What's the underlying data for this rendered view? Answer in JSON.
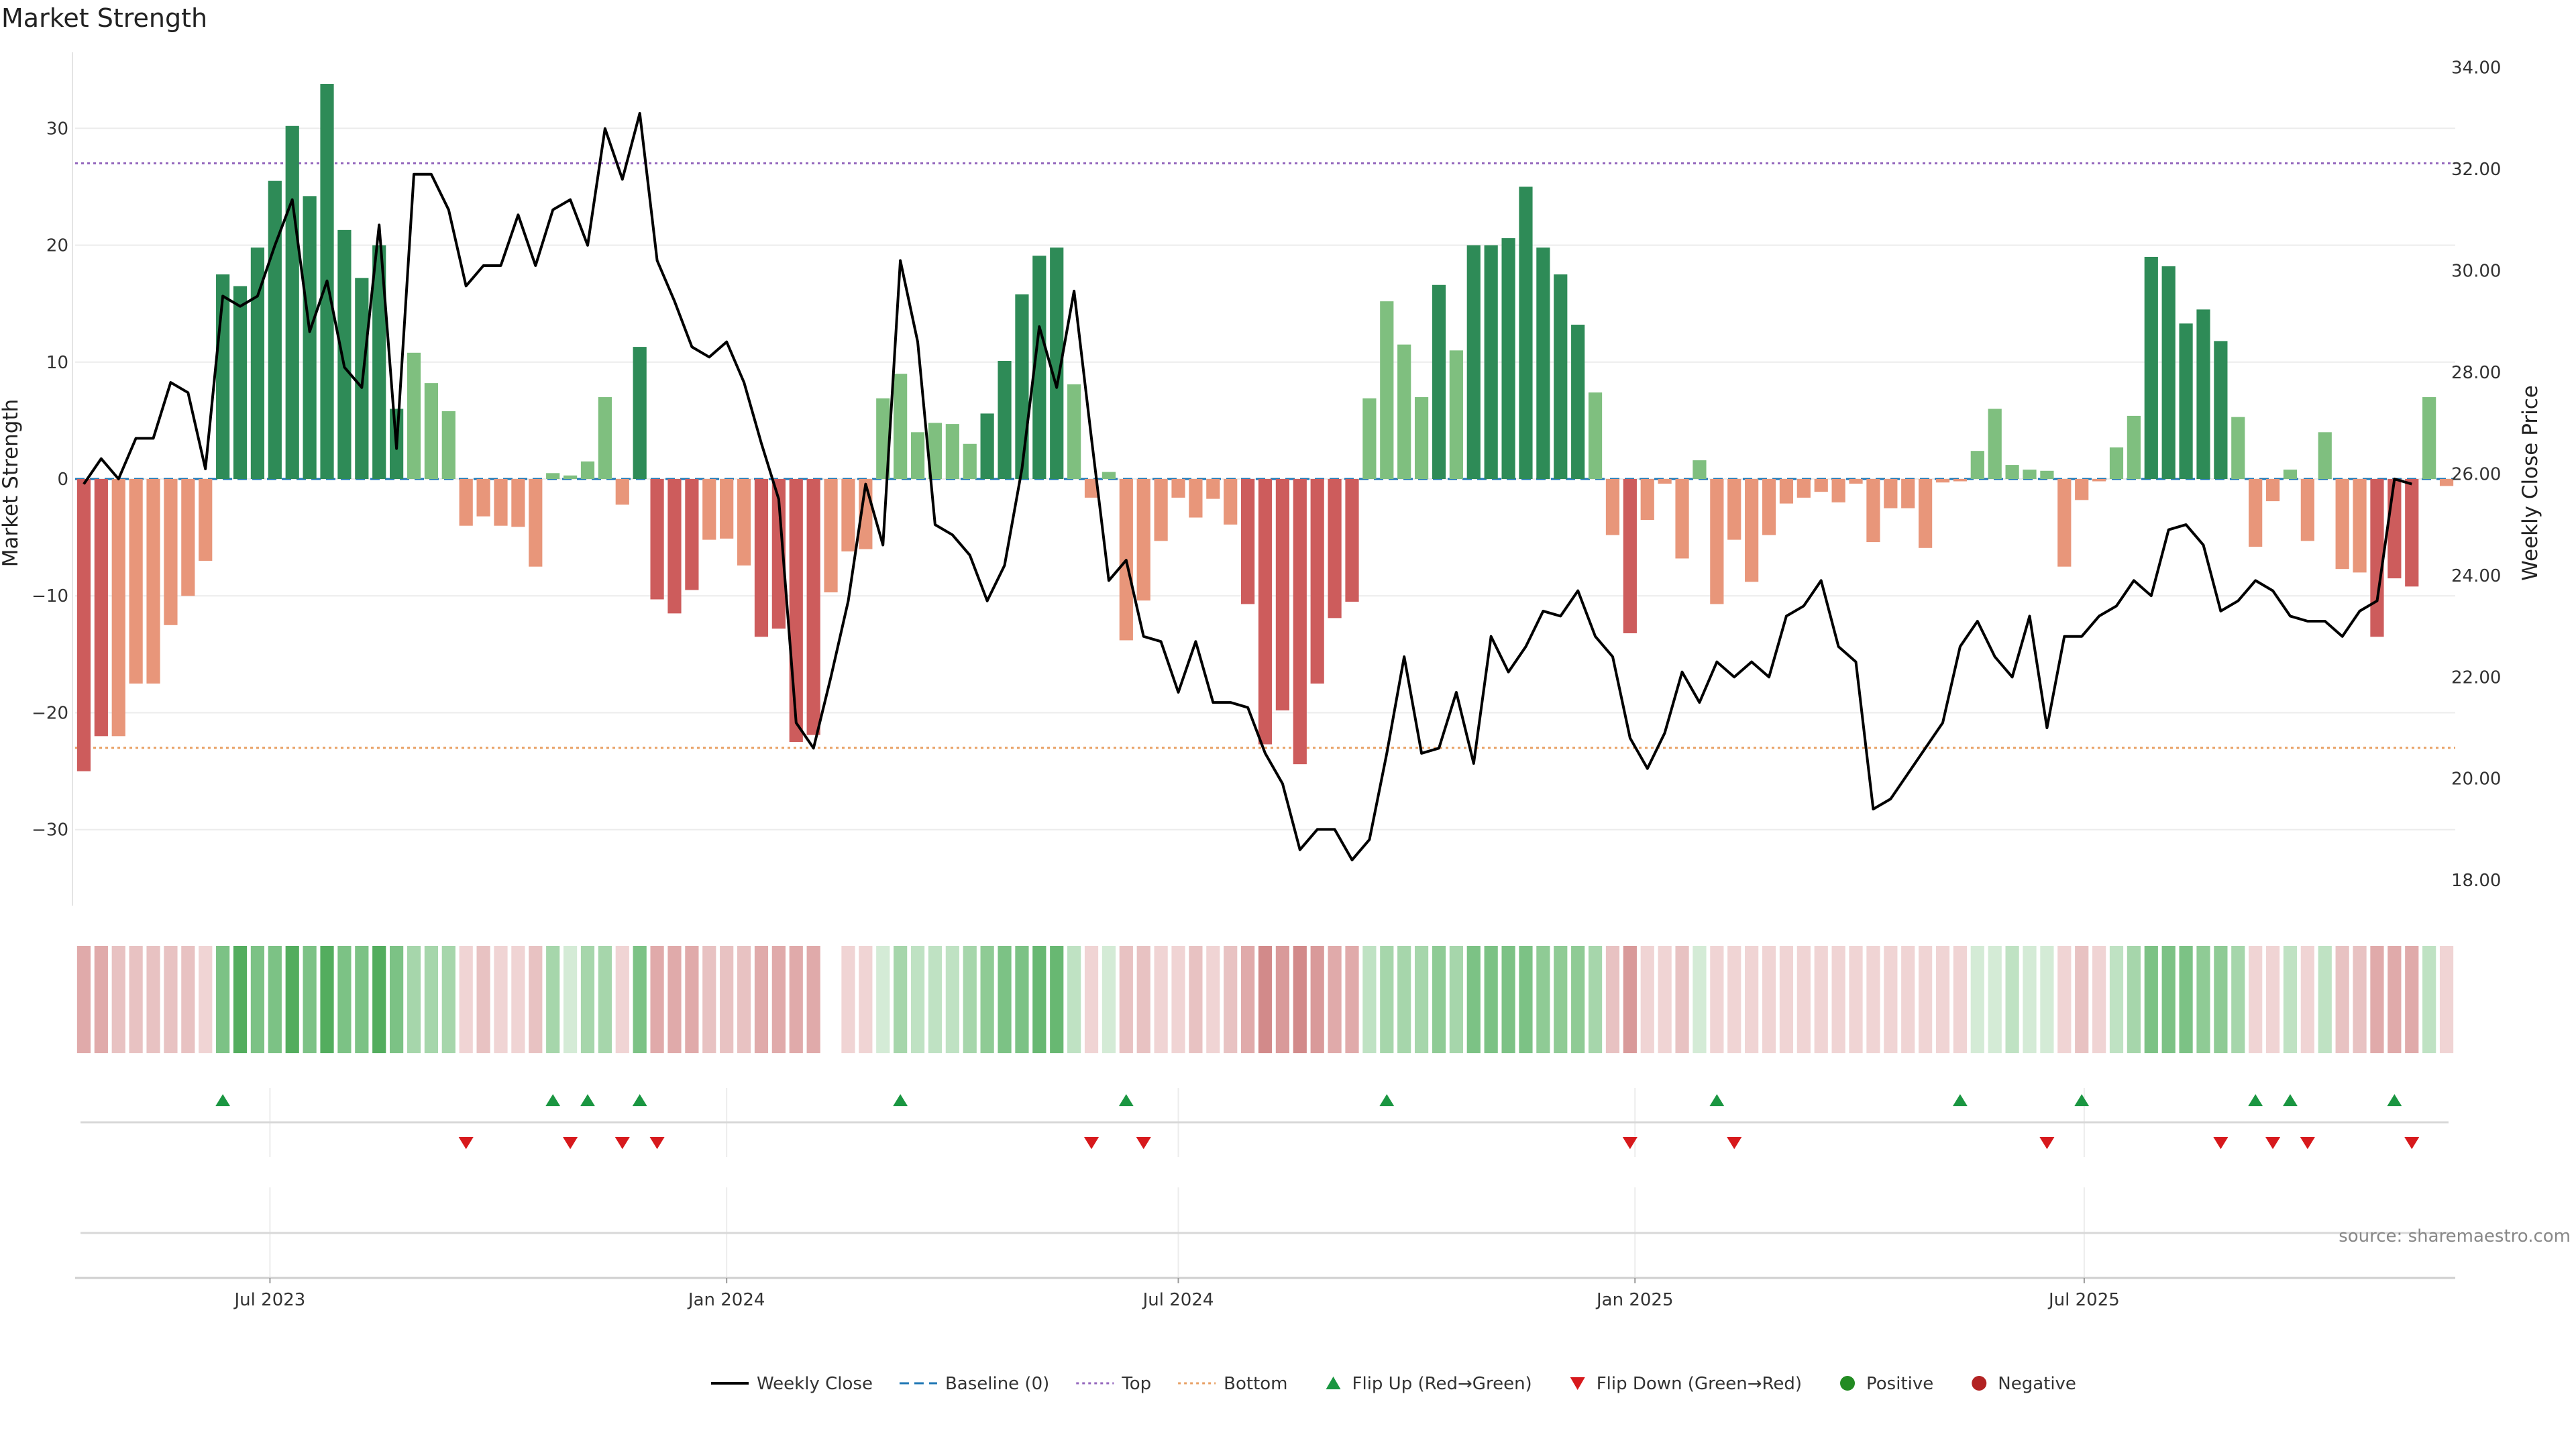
{
  "chart_data": {
    "type": "bar",
    "title": "Market Strength",
    "ylabel": "Market Strength",
    "y2label": "Weekly Close Price",
    "source": "source: sharemaestro.com",
    "ylim": [
      -36.5,
      36.5
    ],
    "y2lim": [
      17.5,
      34.3
    ],
    "yticks": [
      "−30",
      "−20",
      "−10",
      "0",
      "10",
      "20",
      "30"
    ],
    "yticks_values": [
      -30,
      -20,
      -10,
      0,
      10,
      20,
      30
    ],
    "y2ticks": [
      "18.00",
      "20.00",
      "22.00",
      "24.00",
      "26.00",
      "28.00",
      "30.00",
      "32.00",
      "34.00"
    ],
    "y2ticks_values": [
      18,
      20,
      22,
      24,
      26,
      28,
      30,
      32,
      34
    ],
    "xticks": [
      "Jul 2023",
      "Jan 2024",
      "Jul 2024",
      "Jan 2025",
      "Jul 2025"
    ],
    "xticks_values": [
      "2023-07-01",
      "2024-01-01",
      "2024-07-01",
      "2025-01-01",
      "2025-07-01"
    ],
    "start_date": "2023-04-17",
    "week_step_days": 7,
    "grid": true,
    "legend_position": "bottom-center",
    "reference_lines": [
      {
        "name": "Baseline (0)",
        "value": 0,
        "color": "#1f77b4",
        "style": "dashed"
      },
      {
        "name": "Top",
        "value": 27,
        "color": "#9467bd",
        "style": "dotted"
      },
      {
        "name": "Bottom",
        "value": -23,
        "color": "#e8a064",
        "style": "dotted"
      }
    ],
    "colors": {
      "pos_strong": "#2e8b57",
      "pos_weak": "#7fbf7f",
      "neg_strong": "#cd5c5c",
      "neg_weak": "#e8967a",
      "line": "#000000",
      "flip_up": "#1a9641",
      "flip_down": "#d7191c",
      "positive": "#228b22",
      "negative": "#b22222"
    },
    "legend": [
      {
        "label": "Weekly Close",
        "kind": "line"
      },
      {
        "label": "Baseline (0)",
        "kind": "baseline"
      },
      {
        "label": "Top",
        "kind": "top"
      },
      {
        "label": "Bottom",
        "kind": "bottom"
      },
      {
        "label": "Flip Up (Red→Green)",
        "kind": "flipup"
      },
      {
        "label": "Flip Down (Green→Red)",
        "kind": "flipdown"
      },
      {
        "label": "Positive",
        "kind": "positive"
      },
      {
        "label": "Negative",
        "kind": "negative"
      }
    ],
    "strength": [
      -25,
      -22,
      -22,
      -17.5,
      -17.5,
      -12.5,
      -10,
      -7,
      17.5,
      16.5,
      19.8,
      25.5,
      30.2,
      24.2,
      33.8,
      21.3,
      17.2,
      20,
      6,
      10.8,
      8.2,
      5.8,
      -4,
      -3.2,
      -4,
      -4.1,
      -7.5,
      0.5,
      0.3,
      1.5,
      7,
      -2.2,
      11.3,
      -10.3,
      -11.5,
      -9.5,
      -5.2,
      -5.1,
      -7.4,
      -13.5,
      -12.8,
      -22.5,
      -21.9,
      -9.7,
      -6.2,
      -6,
      6.9,
      9,
      4,
      4.8,
      4.7,
      3,
      5.6,
      10.1,
      15.8,
      19.1,
      19.8,
      8.1,
      -1.6,
      0.6,
      -13.8,
      -10.4,
      -5.3,
      -1.6,
      -3.3,
      -1.7,
      -3.9,
      -10.7,
      -22.7,
      -19.8,
      -24.4,
      -17.5,
      -11.9,
      -10.5,
      6.9,
      15.2,
      11.5,
      7,
      16.6,
      11,
      20,
      20,
      20.6,
      25,
      19.8,
      17.5,
      13.2,
      7.4,
      -4.8,
      -13.2,
      -3.5,
      -0.4,
      -6.8,
      1.6,
      -10.7,
      -5.2,
      -8.8,
      -4.8,
      -2.1,
      -1.6,
      -1.1,
      -2,
      -0.4,
      -5.4,
      -2.5,
      -2.5,
      -5.9,
      -0.3,
      -0.2,
      2.4,
      6,
      1.2,
      0.8,
      0.7,
      -7.5,
      -1.8,
      -0.2,
      2.7,
      5.4,
      19,
      18.2,
      13.3,
      14.5,
      11.8,
      5.3,
      -5.8,
      -1.9,
      0.8,
      -5.3,
      4,
      -7.7,
      -8,
      -13.5,
      -8.5,
      -9.2,
      7,
      -0.6
    ],
    "strength_shading": [
      4,
      4,
      3,
      3,
      3,
      3,
      3,
      2,
      6,
      8,
      6,
      6,
      8,
      6,
      8,
      6,
      6,
      8,
      6,
      4,
      4,
      4,
      2,
      3,
      2,
      2,
      3,
      4,
      2,
      4,
      4,
      2,
      6,
      4,
      4,
      4,
      3,
      3,
      3,
      4,
      4,
      4,
      4,
      3,
      2,
      2,
      2,
      4,
      3,
      3,
      3,
      4,
      5,
      6,
      6,
      7,
      7,
      3,
      2,
      2,
      3,
      3,
      2,
      2,
      3,
      2,
      3,
      4,
      6,
      5,
      6,
      5,
      4,
      4,
      3,
      4,
      4,
      4,
      5,
      4,
      6,
      6,
      6,
      6,
      5,
      5,
      5,
      4,
      3,
      5,
      2,
      2,
      3,
      2,
      2,
      2,
      2,
      2,
      2,
      2,
      2,
      2,
      2,
      2,
      2,
      2,
      2,
      2,
      2,
      2,
      2,
      3,
      2,
      2,
      2,
      3,
      2,
      3,
      4,
      6,
      6,
      6,
      5,
      5,
      4,
      2,
      2,
      3,
      2,
      3,
      3,
      3,
      4,
      4,
      4,
      3,
      2
    ],
    "weekly_close": [
      25.8,
      26.3,
      25.9,
      26.7,
      26.7,
      27.8,
      27.6,
      26.1,
      29.5,
      29.3,
      29.5,
      30.5,
      31.4,
      28.8,
      29.8,
      28.1,
      27.7,
      30.9,
      26.5,
      31.9,
      31.9,
      31.2,
      29.7,
      30.1,
      30.1,
      31.1,
      30.1,
      31.2,
      31.4,
      30.5,
      32.8,
      31.8,
      33.1,
      30.2,
      29.4,
      28.5,
      28.3,
      28.6,
      27.8,
      26.6,
      25.5,
      21.1,
      20.6,
      22,
      23.5,
      25.8,
      24.6,
      30.2,
      28.6,
      25,
      24.8,
      24.4,
      23.5,
      24.2,
      26.1,
      28.9,
      27.7,
      29.6,
      26.7,
      23.9,
      24.3,
      22.8,
      22.7,
      21.7,
      22.7,
      21.5,
      21.5,
      21.4,
      20.5,
      19.9,
      18.6,
      19,
      19,
      18.4,
      18.8,
      20.5,
      22.4,
      20.5,
      20.6,
      21.7,
      20.3,
      22.8,
      22.1,
      22.6,
      23.3,
      23.2,
      23.7,
      22.8,
      22.4,
      20.8,
      20.2,
      20.9,
      22.1,
      21.5,
      22.3,
      22,
      22.3,
      22,
      23.2,
      23.4,
      23.9,
      22.6,
      22.3,
      19.4,
      19.6,
      20.1,
      20.6,
      21.1,
      22.6,
      23.1,
      22.4,
      22,
      23.2,
      21,
      22.8,
      22.8,
      23.2,
      23.4,
      23.9,
      23.6,
      24.9,
      25,
      24.6,
      23.3,
      23.5,
      23.9,
      23.7,
      23.2,
      23.1,
      23.1,
      22.8,
      23.3,
      23.5,
      25.9,
      25.8
    ],
    "flip_up_weeks": [
      8,
      27,
      29,
      32,
      47,
      60,
      75,
      94,
      108,
      115,
      125,
      127,
      133
    ],
    "flip_down_weeks": [
      22,
      28,
      31,
      33,
      58,
      61,
      89,
      95,
      113,
      123,
      126,
      128,
      134
    ]
  }
}
